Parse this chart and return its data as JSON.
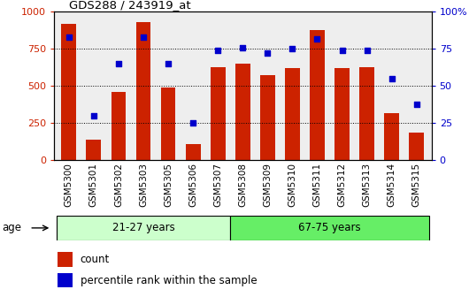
{
  "title": "GDS288 / 243919_at",
  "categories": [
    "GSM5300",
    "GSM5301",
    "GSM5302",
    "GSM5303",
    "GSM5305",
    "GSM5306",
    "GSM5307",
    "GSM5308",
    "GSM5309",
    "GSM5310",
    "GSM5311",
    "GSM5312",
    "GSM5313",
    "GSM5314",
    "GSM5315"
  ],
  "bar_values": [
    920,
    140,
    460,
    930,
    490,
    110,
    630,
    650,
    575,
    620,
    880,
    620,
    630,
    320,
    190
  ],
  "dot_values": [
    83,
    30,
    65,
    83,
    65,
    25,
    74,
    76,
    72,
    75,
    82,
    74,
    74,
    55,
    38
  ],
  "bar_color": "#cc2200",
  "dot_color": "#0000cc",
  "group1_label": "21-27 years",
  "group2_label": "67-75 years",
  "group1_n": 7,
  "group2_n": 8,
  "group1_color": "#ccffcc",
  "group2_color": "#66ee66",
  "age_label": "age",
  "legend_count": "count",
  "legend_percentile": "percentile rank within the sample",
  "ylim_left": [
    0,
    1000
  ],
  "ylim_right": [
    0,
    100
  ],
  "yticks_left": [
    0,
    250,
    500,
    750,
    1000
  ],
  "yticks_right": [
    0,
    25,
    50,
    75,
    100
  ],
  "background_color": "#ffffff"
}
